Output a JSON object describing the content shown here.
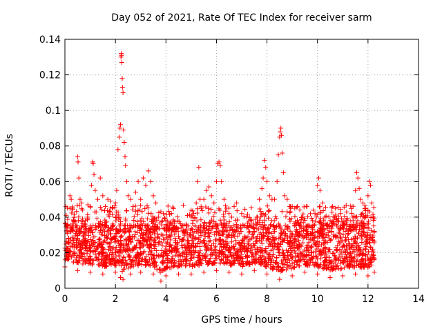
{
  "chart_data": {
    "type": "scatter",
    "title": "Day 052 of 2021, Rate Of TEC Index for receiver sarm",
    "xlabel": "GPS time / hours",
    "ylabel": "ROTI / TECUs",
    "xlim": [
      0,
      14
    ],
    "ylim": [
      0,
      0.14
    ],
    "x_ticks": [
      0,
      2,
      4,
      6,
      8,
      10,
      12,
      14
    ],
    "x_tick_labels": [
      "0",
      "2",
      "4",
      "6",
      "8",
      "10",
      "12",
      "14"
    ],
    "y_ticks": [
      0,
      0.02,
      0.04,
      0.06,
      0.08,
      0.1,
      0.12,
      0.14
    ],
    "y_tick_labels": [
      "0",
      "0.02",
      "0.04",
      "0.06",
      "0.08",
      "0.1",
      "0.12",
      "0.14"
    ],
    "grid": true,
    "marker": "+",
    "marker_color": "#ff0000",
    "series": [
      {
        "name": "ROTI",
        "points": [
          [
            0.05,
            0.041
          ],
          [
            0.1,
            0.035
          ],
          [
            0.15,
            0.028
          ],
          [
            0.2,
            0.052
          ],
          [
            0.25,
            0.05
          ],
          [
            0.3,
            0.045
          ],
          [
            0.35,
            0.038
          ],
          [
            0.45,
            0.032
          ],
          [
            0.5,
            0.074
          ],
          [
            0.52,
            0.071
          ],
          [
            0.55,
            0.062
          ],
          [
            0.6,
            0.05
          ],
          [
            0.65,
            0.048
          ],
          [
            0.7,
            0.044
          ],
          [
            0.8,
            0.036
          ],
          [
            0.9,
            0.04
          ],
          [
            1.0,
            0.046
          ],
          [
            1.05,
            0.058
          ],
          [
            1.1,
            0.071
          ],
          [
            1.12,
            0.07
          ],
          [
            1.15,
            0.064
          ],
          [
            1.2,
            0.055
          ],
          [
            1.3,
            0.05
          ],
          [
            1.4,
            0.062
          ],
          [
            1.5,
            0.052
          ],
          [
            1.6,
            0.046
          ],
          [
            1.7,
            0.05
          ],
          [
            1.8,
            0.049
          ],
          [
            1.9,
            0.045
          ],
          [
            2.0,
            0.048
          ],
          [
            2.05,
            0.055
          ],
          [
            2.1,
            0.078
          ],
          [
            2.15,
            0.085
          ],
          [
            2.18,
            0.09
          ],
          [
            2.2,
            0.092
          ],
          [
            2.22,
            0.13
          ],
          [
            2.23,
            0.132
          ],
          [
            2.24,
            0.131
          ],
          [
            2.25,
            0.127
          ],
          [
            2.27,
            0.118
          ],
          [
            2.28,
            0.113
          ],
          [
            2.3,
            0.11
          ],
          [
            2.32,
            0.089
          ],
          [
            2.35,
            0.082
          ],
          [
            2.38,
            0.074
          ],
          [
            2.4,
            0.069
          ],
          [
            2.45,
            0.06
          ],
          [
            2.5,
            0.052
          ],
          [
            2.6,
            0.05
          ],
          [
            2.7,
            0.046
          ],
          [
            2.8,
            0.054
          ],
          [
            2.9,
            0.06
          ],
          [
            3.0,
            0.05
          ],
          [
            3.1,
            0.062
          ],
          [
            3.2,
            0.058
          ],
          [
            3.3,
            0.066
          ],
          [
            3.4,
            0.06
          ],
          [
            3.5,
            0.052
          ],
          [
            3.6,
            0.048
          ],
          [
            3.7,
            0.04
          ],
          [
            3.8,
            0.043
          ],
          [
            3.9,
            0.042
          ],
          [
            4.0,
            0.038
          ],
          [
            4.1,
            0.034
          ],
          [
            4.2,
            0.036
          ],
          [
            4.3,
            0.033
          ],
          [
            4.4,
            0.032
          ],
          [
            4.6,
            0.034
          ],
          [
            4.8,
            0.036
          ],
          [
            5.0,
            0.04
          ],
          [
            5.1,
            0.042
          ],
          [
            5.2,
            0.048
          ],
          [
            5.25,
            0.06
          ],
          [
            5.3,
            0.068
          ],
          [
            5.35,
            0.05
          ],
          [
            5.4,
            0.045
          ],
          [
            5.5,
            0.05
          ],
          [
            5.6,
            0.055
          ],
          [
            5.7,
            0.057
          ],
          [
            5.8,
            0.052
          ],
          [
            5.9,
            0.048
          ],
          [
            6.0,
            0.06
          ],
          [
            6.05,
            0.07
          ],
          [
            6.1,
            0.071
          ],
          [
            6.15,
            0.069
          ],
          [
            6.2,
            0.06
          ],
          [
            6.3,
            0.05
          ],
          [
            6.4,
            0.045
          ],
          [
            6.5,
            0.042
          ],
          [
            6.6,
            0.04
          ],
          [
            6.7,
            0.046
          ],
          [
            6.8,
            0.048
          ],
          [
            7.0,
            0.042
          ],
          [
            7.2,
            0.04
          ],
          [
            7.4,
            0.038
          ],
          [
            7.6,
            0.04
          ],
          [
            7.7,
            0.05
          ],
          [
            7.8,
            0.056
          ],
          [
            7.85,
            0.062
          ],
          [
            7.9,
            0.072
          ],
          [
            7.95,
            0.068
          ],
          [
            8.0,
            0.06
          ],
          [
            8.1,
            0.052
          ],
          [
            8.2,
            0.05
          ],
          [
            8.3,
            0.05
          ],
          [
            8.4,
            0.06
          ],
          [
            8.45,
            0.075
          ],
          [
            8.5,
            0.085
          ],
          [
            8.52,
            0.088
          ],
          [
            8.55,
            0.09
          ],
          [
            8.57,
            0.086
          ],
          [
            8.6,
            0.076
          ],
          [
            8.65,
            0.065
          ],
          [
            8.7,
            0.052
          ],
          [
            8.8,
            0.05
          ],
          [
            8.9,
            0.046
          ],
          [
            9.0,
            0.046
          ],
          [
            9.1,
            0.045
          ],
          [
            9.2,
            0.046
          ],
          [
            9.3,
            0.044
          ],
          [
            9.4,
            0.04
          ],
          [
            9.5,
            0.034
          ],
          [
            9.6,
            0.032
          ],
          [
            9.7,
            0.035
          ],
          [
            9.8,
            0.038
          ],
          [
            9.9,
            0.042
          ],
          [
            10.0,
            0.058
          ],
          [
            10.05,
            0.062
          ],
          [
            10.1,
            0.055
          ],
          [
            10.2,
            0.048
          ],
          [
            10.3,
            0.04
          ],
          [
            10.4,
            0.036
          ],
          [
            10.5,
            0.038
          ],
          [
            10.6,
            0.046
          ],
          [
            10.7,
            0.045
          ],
          [
            10.8,
            0.038
          ],
          [
            10.9,
            0.035
          ],
          [
            11.0,
            0.034
          ],
          [
            11.1,
            0.032
          ],
          [
            11.2,
            0.03
          ],
          [
            11.3,
            0.034
          ],
          [
            11.4,
            0.04
          ],
          [
            11.5,
            0.055
          ],
          [
            11.55,
            0.065
          ],
          [
            11.6,
            0.062
          ],
          [
            11.65,
            0.056
          ],
          [
            11.7,
            0.05
          ],
          [
            11.8,
            0.048
          ],
          [
            11.9,
            0.045
          ],
          [
            12.0,
            0.052
          ],
          [
            12.05,
            0.06
          ],
          [
            12.1,
            0.058
          ],
          [
            12.15,
            0.048
          ],
          [
            12.2,
            0.04
          ],
          [
            12.25,
            0.032
          ]
        ]
      }
    ],
    "dense_band": {
      "x_range": [
        0,
        12.25
      ],
      "typical_min": 0.008,
      "typical_max": 0.035,
      "min_values": [
        [
          0.0,
          0.012
        ],
        [
          0.5,
          0.01
        ],
        [
          1.0,
          0.009
        ],
        [
          1.5,
          0.008
        ],
        [
          2.0,
          0.009
        ],
        [
          2.2,
          0.006
        ],
        [
          2.3,
          0.005
        ],
        [
          2.6,
          0.008
        ],
        [
          3.0,
          0.009
        ],
        [
          3.5,
          0.008
        ],
        [
          3.8,
          0.004
        ],
        [
          4.0,
          0.007
        ],
        [
          4.5,
          0.008
        ],
        [
          5.0,
          0.008
        ],
        [
          5.5,
          0.009
        ],
        [
          6.0,
          0.01
        ],
        [
          6.5,
          0.009
        ],
        [
          7.0,
          0.008
        ],
        [
          7.5,
          0.01
        ],
        [
          8.0,
          0.008
        ],
        [
          8.5,
          0.005
        ],
        [
          9.0,
          0.007
        ],
        [
          9.5,
          0.009
        ],
        [
          10.0,
          0.008
        ],
        [
          10.5,
          0.006
        ],
        [
          11.0,
          0.007
        ],
        [
          11.5,
          0.008
        ],
        [
          12.0,
          0.007
        ],
        [
          12.25,
          0.009
        ]
      ]
    }
  }
}
